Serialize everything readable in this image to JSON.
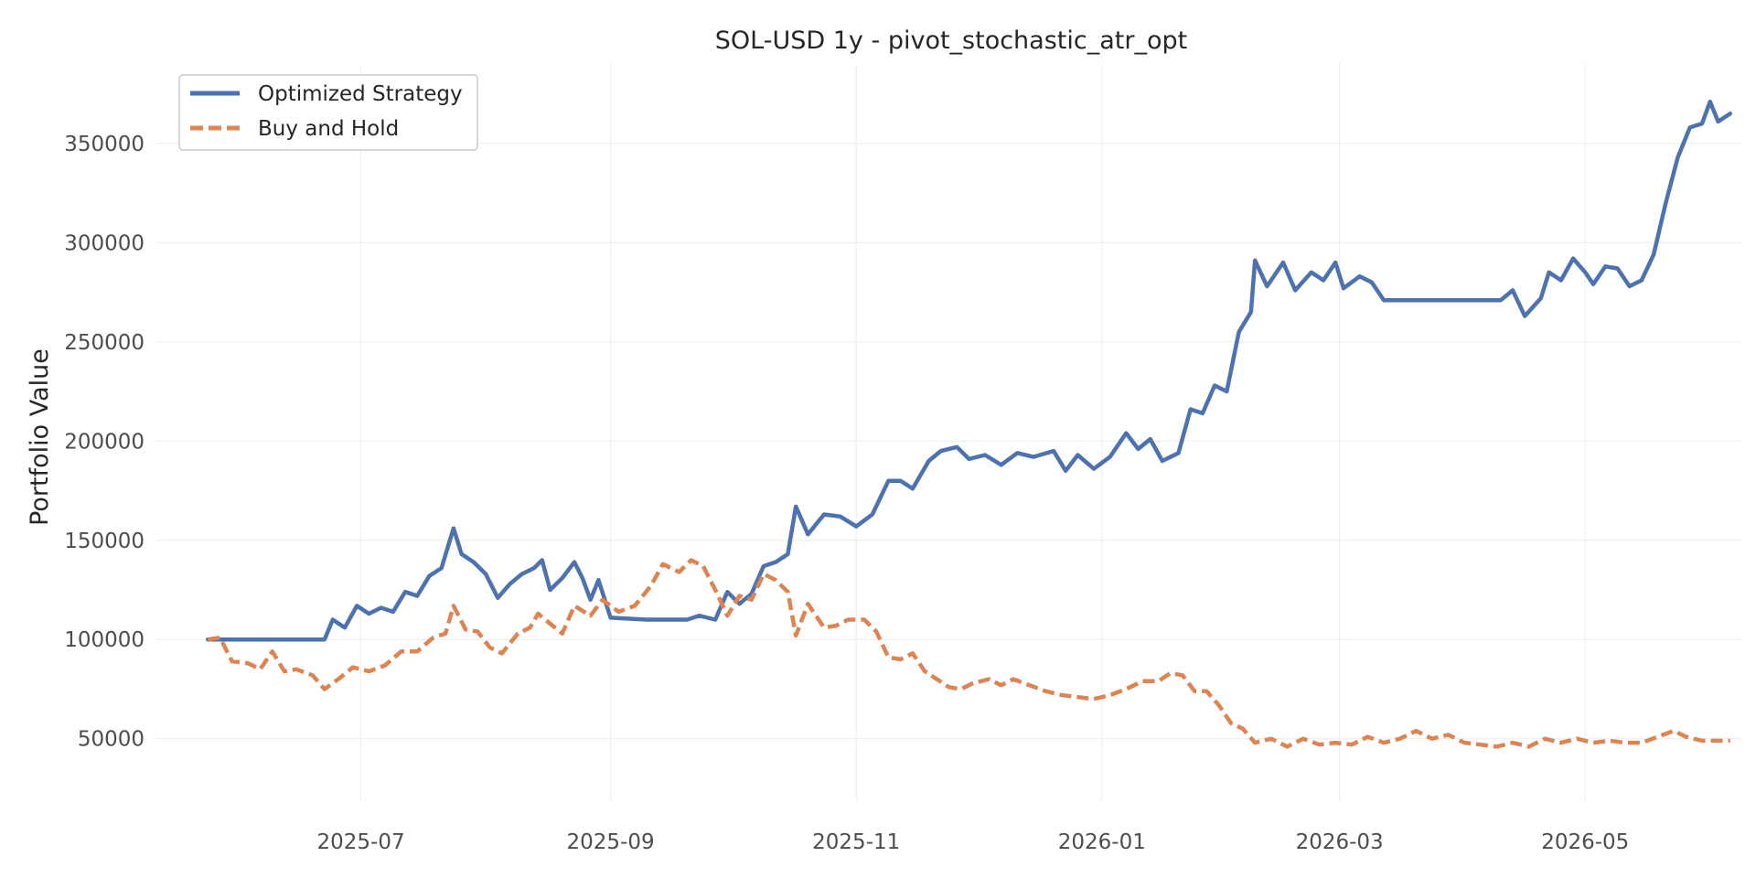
{
  "chart_data": {
    "type": "line",
    "title": "SOL-USD 1y - pivot_stochastic_atr_opt",
    "xlabel": "",
    "ylabel": "Portfolio Value",
    "x_range": [
      "2025-05-11",
      "2026-06-09"
    ],
    "ylim": [
      19000,
      390000
    ],
    "grid": true,
    "legend_position": "top-left",
    "x_ticks": [
      "2025-07",
      "2025-09",
      "2025-11",
      "2026-01",
      "2026-03",
      "2026-05"
    ],
    "x_tick_dates": [
      "2025-07-01",
      "2025-09-01",
      "2025-11-01",
      "2026-01-01",
      "2026-03-01",
      "2026-05-01"
    ],
    "y_ticks": [
      50000,
      100000,
      150000,
      200000,
      250000,
      300000,
      350000
    ],
    "y_tick_labels": [
      "50000",
      "100000",
      "150000",
      "200000",
      "250000",
      "300000",
      "350000"
    ],
    "series": [
      {
        "name": "Optimized Strategy",
        "color": "#4c72b0",
        "style": "solid",
        "points": [
          [
            "2025-05-24",
            100000
          ],
          [
            "2025-06-05",
            100000
          ],
          [
            "2025-06-15",
            100000
          ],
          [
            "2025-06-22",
            100000
          ],
          [
            "2025-06-24",
            110000
          ],
          [
            "2025-06-27",
            106000
          ],
          [
            "2025-06-30",
            117000
          ],
          [
            "2025-07-03",
            113000
          ],
          [
            "2025-07-06",
            116000
          ],
          [
            "2025-07-09",
            114000
          ],
          [
            "2025-07-12",
            124000
          ],
          [
            "2025-07-15",
            122000
          ],
          [
            "2025-07-18",
            132000
          ],
          [
            "2025-07-21",
            136000
          ],
          [
            "2025-07-24",
            156000
          ],
          [
            "2025-07-26",
            143000
          ],
          [
            "2025-07-29",
            139000
          ],
          [
            "2025-08-01",
            133000
          ],
          [
            "2025-08-04",
            121000
          ],
          [
            "2025-08-07",
            128000
          ],
          [
            "2025-08-10",
            133000
          ],
          [
            "2025-08-13",
            136000
          ],
          [
            "2025-08-15",
            140000
          ],
          [
            "2025-08-17",
            125000
          ],
          [
            "2025-08-20",
            131000
          ],
          [
            "2025-08-23",
            139000
          ],
          [
            "2025-08-25",
            131000
          ],
          [
            "2025-08-27",
            120000
          ],
          [
            "2025-08-29",
            130000
          ],
          [
            "2025-09-01",
            111000
          ],
          [
            "2025-09-10",
            110000
          ],
          [
            "2025-09-20",
            110000
          ],
          [
            "2025-09-23",
            112000
          ],
          [
            "2025-09-27",
            110000
          ],
          [
            "2025-09-30",
            124000
          ],
          [
            "2025-10-03",
            118000
          ],
          [
            "2025-10-06",
            123000
          ],
          [
            "2025-10-09",
            137000
          ],
          [
            "2025-10-12",
            139000
          ],
          [
            "2025-10-15",
            143000
          ],
          [
            "2025-10-17",
            167000
          ],
          [
            "2025-10-20",
            153000
          ],
          [
            "2025-10-24",
            163000
          ],
          [
            "2025-10-28",
            162000
          ],
          [
            "2025-11-01",
            157000
          ],
          [
            "2025-11-05",
            163000
          ],
          [
            "2025-11-09",
            180000
          ],
          [
            "2025-11-12",
            180000
          ],
          [
            "2025-11-15",
            176000
          ],
          [
            "2025-11-19",
            190000
          ],
          [
            "2025-11-22",
            195000
          ],
          [
            "2025-11-26",
            197000
          ],
          [
            "2025-11-29",
            191000
          ],
          [
            "2025-12-03",
            193000
          ],
          [
            "2025-12-07",
            188000
          ],
          [
            "2025-12-11",
            194000
          ],
          [
            "2025-12-15",
            192000
          ],
          [
            "2025-12-20",
            195000
          ],
          [
            "2025-12-23",
            185000
          ],
          [
            "2025-12-26",
            193000
          ],
          [
            "2025-12-30",
            186000
          ],
          [
            "2026-01-03",
            192000
          ],
          [
            "2026-01-07",
            204000
          ],
          [
            "2026-01-10",
            196000
          ],
          [
            "2026-01-13",
            201000
          ],
          [
            "2026-01-16",
            190000
          ],
          [
            "2026-01-20",
            194000
          ],
          [
            "2026-01-23",
            216000
          ],
          [
            "2026-01-26",
            214000
          ],
          [
            "2026-01-29",
            228000
          ],
          [
            "2026-02-01",
            225000
          ],
          [
            "2026-02-04",
            255000
          ],
          [
            "2026-02-07",
            265000
          ],
          [
            "2026-02-08",
            291000
          ],
          [
            "2026-02-11",
            278000
          ],
          [
            "2026-02-15",
            290000
          ],
          [
            "2026-02-18",
            276000
          ],
          [
            "2026-02-22",
            285000
          ],
          [
            "2026-02-25",
            281000
          ],
          [
            "2026-02-28",
            290000
          ],
          [
            "2026-03-02",
            277000
          ],
          [
            "2026-03-06",
            283000
          ],
          [
            "2026-03-09",
            280000
          ],
          [
            "2026-03-12",
            271000
          ],
          [
            "2026-03-20",
            271000
          ],
          [
            "2026-04-01",
            271000
          ],
          [
            "2026-04-10",
            271000
          ],
          [
            "2026-04-13",
            276000
          ],
          [
            "2026-04-16",
            263000
          ],
          [
            "2026-04-20",
            272000
          ],
          [
            "2026-04-22",
            285000
          ],
          [
            "2026-04-25",
            281000
          ],
          [
            "2026-04-28",
            292000
          ],
          [
            "2026-05-01",
            285000
          ],
          [
            "2026-05-03",
            279000
          ],
          [
            "2026-05-06",
            288000
          ],
          [
            "2026-05-09",
            287000
          ],
          [
            "2026-05-12",
            278000
          ],
          [
            "2026-05-15",
            281000
          ],
          [
            "2026-05-18",
            294000
          ],
          [
            "2026-05-21",
            320000
          ],
          [
            "2026-05-24",
            343000
          ],
          [
            "2026-05-27",
            358000
          ],
          [
            "2026-05-30",
            360000
          ],
          [
            "2026-06-01",
            371000
          ],
          [
            "2026-06-03",
            361000
          ],
          [
            "2026-06-06",
            365000
          ]
        ]
      },
      {
        "name": "Buy and Hold",
        "color": "#dd8452",
        "style": "dashed",
        "points": [
          [
            "2025-05-24",
            100000
          ],
          [
            "2025-05-27",
            101000
          ],
          [
            "2025-05-30",
            89000
          ],
          [
            "2025-06-03",
            88000
          ],
          [
            "2025-06-06",
            85000
          ],
          [
            "2025-06-09",
            94000
          ],
          [
            "2025-06-12",
            84000
          ],
          [
            "2025-06-15",
            85000
          ],
          [
            "2025-06-19",
            82000
          ],
          [
            "2025-06-22",
            75000
          ],
          [
            "2025-06-26",
            81000
          ],
          [
            "2025-06-29",
            86000
          ],
          [
            "2025-07-03",
            84000
          ],
          [
            "2025-07-07",
            87000
          ],
          [
            "2025-07-11",
            94000
          ],
          [
            "2025-07-15",
            94000
          ],
          [
            "2025-07-19",
            101000
          ],
          [
            "2025-07-22",
            103000
          ],
          [
            "2025-07-24",
            117000
          ],
          [
            "2025-07-27",
            105000
          ],
          [
            "2025-07-30",
            104000
          ],
          [
            "2025-08-02",
            96000
          ],
          [
            "2025-08-05",
            93000
          ],
          [
            "2025-08-09",
            103000
          ],
          [
            "2025-08-12",
            106000
          ],
          [
            "2025-08-14",
            113000
          ],
          [
            "2025-08-17",
            108000
          ],
          [
            "2025-08-20",
            103000
          ],
          [
            "2025-08-23",
            117000
          ],
          [
            "2025-08-27",
            112000
          ],
          [
            "2025-08-30",
            120000
          ],
          [
            "2025-09-03",
            114000
          ],
          [
            "2025-09-07",
            117000
          ],
          [
            "2025-09-11",
            127000
          ],
          [
            "2025-09-14",
            138000
          ],
          [
            "2025-09-18",
            134000
          ],
          [
            "2025-09-21",
            140000
          ],
          [
            "2025-09-24",
            137000
          ],
          [
            "2025-09-27",
            125000
          ],
          [
            "2025-09-30",
            112000
          ],
          [
            "2025-10-03",
            122000
          ],
          [
            "2025-10-06",
            120000
          ],
          [
            "2025-10-09",
            133000
          ],
          [
            "2025-10-12",
            130000
          ],
          [
            "2025-10-15",
            124000
          ],
          [
            "2025-10-17",
            102000
          ],
          [
            "2025-10-20",
            118000
          ],
          [
            "2025-10-24",
            106000
          ],
          [
            "2025-10-27",
            107000
          ],
          [
            "2025-10-30",
            110000
          ],
          [
            "2025-11-03",
            110000
          ],
          [
            "2025-11-06",
            104000
          ],
          [
            "2025-11-09",
            91000
          ],
          [
            "2025-11-12",
            90000
          ],
          [
            "2025-11-15",
            93000
          ],
          [
            "2025-11-18",
            84000
          ],
          [
            "2025-11-21",
            80000
          ],
          [
            "2025-11-24",
            76000
          ],
          [
            "2025-11-27",
            75000
          ],
          [
            "2025-11-30",
            78000
          ],
          [
            "2025-12-04",
            80000
          ],
          [
            "2025-12-07",
            77000
          ],
          [
            "2025-12-10",
            80000
          ],
          [
            "2025-12-14",
            77000
          ],
          [
            "2025-12-18",
            74000
          ],
          [
            "2025-12-22",
            72000
          ],
          [
            "2025-12-26",
            71000
          ],
          [
            "2025-12-30",
            70000
          ],
          [
            "2026-01-03",
            72000
          ],
          [
            "2026-01-07",
            75000
          ],
          [
            "2026-01-11",
            79000
          ],
          [
            "2026-01-15",
            79000
          ],
          [
            "2026-01-18",
            83000
          ],
          [
            "2026-01-21",
            82000
          ],
          [
            "2026-01-24",
            74000
          ],
          [
            "2026-01-27",
            74000
          ],
          [
            "2026-01-30",
            67000
          ],
          [
            "2026-02-02",
            58000
          ],
          [
            "2026-02-05",
            55000
          ],
          [
            "2026-02-08",
            48000
          ],
          [
            "2026-02-12",
            50000
          ],
          [
            "2026-02-16",
            46000
          ],
          [
            "2026-02-20",
            50000
          ],
          [
            "2026-02-24",
            47000
          ],
          [
            "2026-02-28",
            48000
          ],
          [
            "2026-03-04",
            47000
          ],
          [
            "2026-03-08",
            51000
          ],
          [
            "2026-03-12",
            48000
          ],
          [
            "2026-03-16",
            50000
          ],
          [
            "2026-03-20",
            54000
          ],
          [
            "2026-03-24",
            50000
          ],
          [
            "2026-03-28",
            52000
          ],
          [
            "2026-04-01",
            48000
          ],
          [
            "2026-04-05",
            47000
          ],
          [
            "2026-04-09",
            46000
          ],
          [
            "2026-04-13",
            48000
          ],
          [
            "2026-04-17",
            46000
          ],
          [
            "2026-04-21",
            50000
          ],
          [
            "2026-04-25",
            48000
          ],
          [
            "2026-04-29",
            50000
          ],
          [
            "2026-05-03",
            48000
          ],
          [
            "2026-05-07",
            49000
          ],
          [
            "2026-05-11",
            48000
          ],
          [
            "2026-05-15",
            48000
          ],
          [
            "2026-05-19",
            51000
          ],
          [
            "2026-05-23",
            54000
          ],
          [
            "2026-05-26",
            51000
          ],
          [
            "2026-05-30",
            49000
          ],
          [
            "2026-06-03",
            49000
          ],
          [
            "2026-06-06",
            49000
          ]
        ]
      }
    ]
  }
}
